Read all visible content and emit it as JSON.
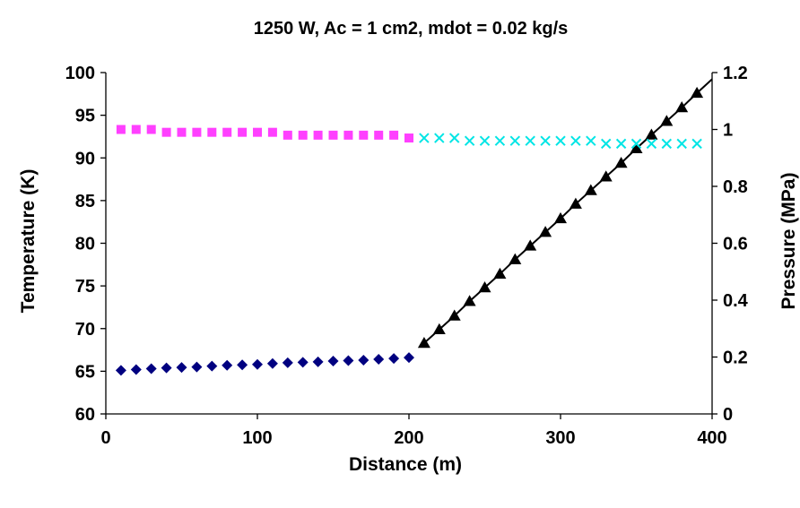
{
  "chart_data": {
    "type": "line",
    "title": "1250 W, Ac = 1 cm2, mdot = 0.02 kg/s",
    "xlabel": "Distance (m)",
    "ylabel": "Temperature (K)",
    "y2label": "Pressure (MPa)",
    "xlim": [
      0,
      400
    ],
    "ylim": [
      60,
      100
    ],
    "y2lim": [
      0,
      1.2
    ],
    "x_ticks": [
      "0",
      "100",
      "200",
      "300",
      "400"
    ],
    "y_ticks": [
      "60",
      "65",
      "70",
      "75",
      "80",
      "85",
      "90",
      "95",
      "100"
    ],
    "y2_ticks": [
      "0",
      "0.2",
      "0.4",
      "0.6",
      "0.8",
      "1",
      "1.2"
    ],
    "grid": false,
    "legend": "none",
    "series": [
      {
        "axis": "left",
        "marker": "diamond",
        "line": false,
        "color": "#000080",
        "x": [
          10,
          20,
          30,
          40,
          50,
          60,
          70,
          80,
          90,
          100,
          110,
          120,
          130,
          140,
          150,
          160,
          170,
          180,
          190,
          200
        ],
        "y": [
          65.1,
          65.2,
          65.3,
          65.4,
          65.45,
          65.5,
          65.6,
          65.7,
          65.75,
          65.8,
          65.9,
          66.0,
          66.05,
          66.1,
          66.2,
          66.25,
          66.3,
          66.4,
          66.5,
          66.6
        ]
      },
      {
        "axis": "left",
        "marker": "triangle",
        "line": true,
        "color": "#000000",
        "x": [
          210,
          220,
          230,
          240,
          250,
          260,
          270,
          280,
          290,
          300,
          310,
          320,
          330,
          340,
          350,
          360,
          370,
          380,
          390
        ],
        "y": [
          68.3,
          69.9,
          71.5,
          73.2,
          74.8,
          76.4,
          78.1,
          79.7,
          81.3,
          82.9,
          84.6,
          86.2,
          87.8,
          89.4,
          91.1,
          92.7,
          94.3,
          95.9,
          97.6
        ]
      },
      {
        "axis": "right",
        "marker": "square",
        "line": false,
        "color": "#ff40ff",
        "x": [
          10,
          20,
          30,
          40,
          50,
          60,
          70,
          80,
          90,
          100,
          110,
          120,
          130,
          140,
          150,
          160,
          170,
          180,
          190,
          200
        ],
        "y": [
          1.0,
          1.0,
          1.0,
          0.99,
          0.99,
          0.99,
          0.99,
          0.99,
          0.99,
          0.99,
          0.99,
          0.98,
          0.98,
          0.98,
          0.98,
          0.98,
          0.98,
          0.98,
          0.98,
          0.97
        ]
      },
      {
        "axis": "right",
        "marker": "x",
        "line": false,
        "color": "#00e5e5",
        "x": [
          210,
          220,
          230,
          240,
          250,
          260,
          270,
          280,
          290,
          300,
          310,
          320,
          330,
          340,
          350,
          360,
          370,
          380,
          390
        ],
        "y": [
          0.97,
          0.97,
          0.97,
          0.96,
          0.96,
          0.96,
          0.96,
          0.96,
          0.96,
          0.96,
          0.96,
          0.96,
          0.95,
          0.95,
          0.95,
          0.95,
          0.95,
          0.95,
          0.95
        ]
      }
    ]
  }
}
